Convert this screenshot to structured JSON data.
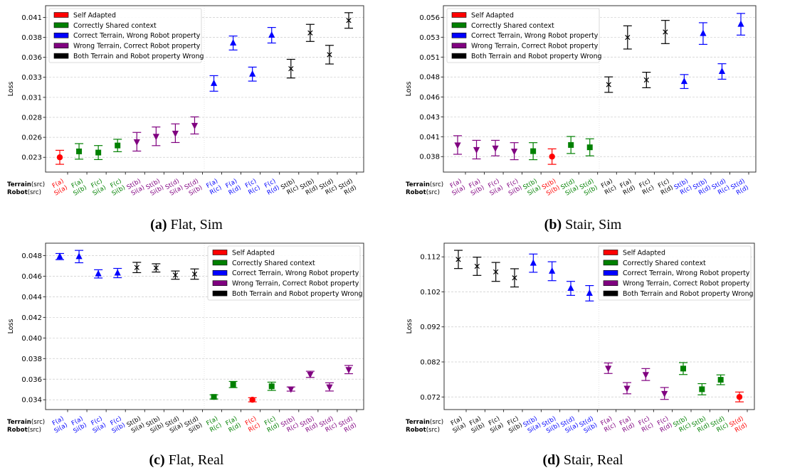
{
  "legend": {
    "groups": [
      {
        "key": "self",
        "label": "Self Adapted",
        "color": "#ff0000",
        "marker": "circle"
      },
      {
        "key": "shared",
        "label": "Correctly Shared context",
        "color": "#008000",
        "marker": "square"
      },
      {
        "key": "terrain_ok",
        "label": "Correct Terrain, Wrong Robot property",
        "color": "#0000ff",
        "marker": "triangle-up"
      },
      {
        "key": "robot_ok",
        "label": "Wrong Terrain, Correct Robot property",
        "color": "#800080",
        "marker": "triangle-down"
      },
      {
        "key": "both_wrong",
        "label": "Both Terrain and Robot property Wrong",
        "color": "#000000",
        "marker": "x"
      }
    ]
  },
  "xaxis_rows": {
    "terrain_bold": "Terrain",
    "robot_bold": "Robot",
    "suffix": "(src)"
  },
  "categories": [
    {
      "terrain": "F(a)",
      "robot": "Si(a)"
    },
    {
      "terrain": "F(a)",
      "robot": "Si(b)"
    },
    {
      "terrain": "F(c)",
      "robot": "Si(a)"
    },
    {
      "terrain": "F(c)",
      "robot": "Si(b)"
    },
    {
      "terrain": "St(b)",
      "robot": "Si(a)"
    },
    {
      "terrain": "St(b)",
      "robot": "Si(b)"
    },
    {
      "terrain": "St(d)",
      "robot": "Si(a)"
    },
    {
      "terrain": "St(d)",
      "robot": "Si(b)"
    },
    {
      "terrain": "F(a)",
      "robot": "R(c)"
    },
    {
      "terrain": "F(a)",
      "robot": "R(d)"
    },
    {
      "terrain": "F(c)",
      "robot": "R(c)"
    },
    {
      "terrain": "F(c)",
      "robot": "R(d)"
    },
    {
      "terrain": "St(b)",
      "robot": "R(c)"
    },
    {
      "terrain": "St(b)",
      "robot": "R(d)"
    },
    {
      "terrain": "St(d)",
      "robot": "R(c)"
    },
    {
      "terrain": "St(d)",
      "robot": "R(d)"
    }
  ],
  "chart_data": [
    {
      "type": "scatter",
      "caption_letter": "(a)",
      "caption_text": " Flat, Sim",
      "ylabel": "Loss",
      "ylim": [
        0.0211,
        0.0425
      ],
      "yticks": [
        0.023,
        0.02557,
        0.02814,
        0.03071,
        0.03329,
        0.03586,
        0.03843,
        0.041
      ],
      "ytick_labels": [
        "0.023",
        "0.026",
        "0.028",
        "0.031",
        "0.033",
        "0.036",
        "0.038",
        "0.041"
      ],
      "grid": "horizontal dashed",
      "legend_position": "upper-left",
      "groups": [
        "self",
        "shared",
        "shared",
        "shared",
        "robot_ok",
        "robot_ok",
        "robot_ok",
        "robot_ok",
        "terrain_ok",
        "terrain_ok",
        "terrain_ok",
        "terrain_ok",
        "both_wrong",
        "both_wrong",
        "both_wrong",
        "both_wrong"
      ],
      "values": [
        0.023,
        0.02376,
        0.02361,
        0.02452,
        0.025,
        0.0257,
        0.0261,
        0.0271,
        0.0325,
        0.0377,
        0.0337,
        0.0387,
        0.0344,
        0.039,
        0.0362,
        0.0406
      ],
      "errors": [
        0.0009,
        0.001,
        0.0009,
        0.0008,
        0.0012,
        0.0012,
        0.0012,
        0.0011,
        0.001,
        0.0009,
        0.0009,
        0.001,
        0.0012,
        0.0011,
        0.0012,
        0.001
      ]
    },
    {
      "type": "scatter",
      "caption_letter": "(b)",
      "caption_text": " Stair, Sim",
      "ylabel": "Loss",
      "ylim": [
        0.036,
        0.0575
      ],
      "yticks": [
        0.038,
        0.04057,
        0.04314,
        0.04571,
        0.04829,
        0.05086,
        0.05343,
        0.056
      ],
      "ytick_labels": [
        "0.038",
        "0.041",
        "0.043",
        "0.046",
        "0.048",
        "0.051",
        "0.053",
        "0.056"
      ],
      "grid": "horizontal dashed",
      "legend_position": "upper-left",
      "groups": [
        "robot_ok",
        "robot_ok",
        "robot_ok",
        "robot_ok",
        "shared",
        "self",
        "shared",
        "shared",
        "both_wrong",
        "both_wrong",
        "both_wrong",
        "both_wrong",
        "terrain_ok",
        "terrain_ok",
        "terrain_ok",
        "terrain_ok"
      ],
      "values": [
        0.0395,
        0.0389,
        0.0391,
        0.0387,
        0.0387,
        0.038,
        0.0395,
        0.0392,
        0.0473,
        0.0534,
        0.0479,
        0.0541,
        0.0477,
        0.0539,
        0.049,
        0.0551
      ],
      "errors": [
        0.0012,
        0.0012,
        0.001,
        0.0011,
        0.0011,
        0.001,
        0.0011,
        0.0011,
        0.001,
        0.0015,
        0.001,
        0.0015,
        0.0009,
        0.0014,
        0.001,
        0.0014
      ]
    },
    {
      "type": "scatter",
      "caption_letter": "(c)",
      "caption_text": " Flat, Real",
      "ylabel": "Loss",
      "ylim": [
        0.03305,
        0.0492
      ],
      "yticks": [
        0.034,
        0.036,
        0.038,
        0.04,
        0.042,
        0.044,
        0.046,
        0.048
      ],
      "ytick_labels": [
        "0.034",
        "0.036",
        "0.038",
        "0.040",
        "0.042",
        "0.044",
        "0.046",
        "0.048"
      ],
      "grid": "horizontal dashed",
      "legend_position": "upper-right",
      "groups": [
        "terrain_ok",
        "terrain_ok",
        "terrain_ok",
        "terrain_ok",
        "both_wrong",
        "both_wrong",
        "both_wrong",
        "both_wrong",
        "shared",
        "shared",
        "self",
        "shared",
        "robot_ok",
        "robot_ok",
        "robot_ok",
        "robot_ok"
      ],
      "values": [
        0.0479,
        0.0479,
        0.04622,
        0.0463,
        0.04684,
        0.0468,
        0.0461,
        0.0462,
        0.03428,
        0.03548,
        0.034,
        0.03531,
        0.03504,
        0.03647,
        0.03525,
        0.03693
      ],
      "errors": [
        0.0003,
        0.0006,
        0.0004,
        0.00045,
        0.0005,
        0.0004,
        0.0004,
        0.0005,
        0.0002,
        0.0003,
        0.0002,
        0.0004,
        0.0002,
        0.0003,
        0.0004,
        0.0004
      ]
    },
    {
      "type": "scatter",
      "caption_letter": "(d)",
      "caption_text": " Stair, Real",
      "ylabel": "Loss",
      "ylim": [
        0.0684,
        0.1159
      ],
      "yticks": [
        0.072,
        0.082,
        0.092,
        0.102,
        0.112
      ],
      "ytick_labels": [
        "0.072",
        "0.082",
        "0.092",
        "0.102",
        "0.112"
      ],
      "grid": "horizontal dashed",
      "legend_position": "upper-right",
      "groups": [
        "both_wrong",
        "both_wrong",
        "both_wrong",
        "both_wrong",
        "terrain_ok",
        "terrain_ok",
        "terrain_ok",
        "terrain_ok",
        "robot_ok",
        "robot_ok",
        "robot_ok",
        "robot_ok",
        "shared",
        "shared",
        "shared",
        "self"
      ],
      "values": [
        0.11126,
        0.1093,
        0.1077,
        0.106,
        0.1102,
        0.1079,
        0.103,
        0.1016,
        0.0802,
        0.0745,
        0.0784,
        0.073,
        0.0801,
        0.0742,
        0.0769,
        0.072
      ],
      "errors": [
        0.0026,
        0.0026,
        0.0027,
        0.0026,
        0.0026,
        0.0027,
        0.002,
        0.0022,
        0.0015,
        0.0016,
        0.0017,
        0.0017,
        0.0017,
        0.0016,
        0.0014,
        0.0014
      ]
    }
  ]
}
